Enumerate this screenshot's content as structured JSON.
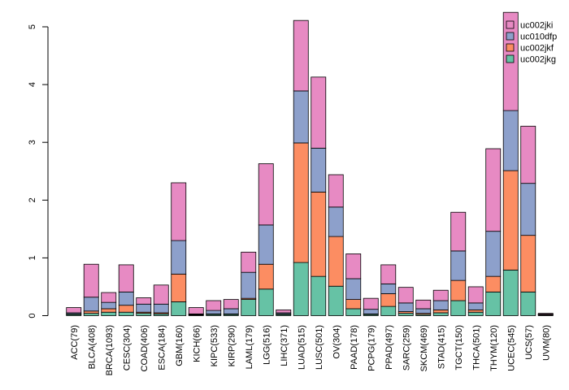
{
  "chart_data": {
    "type": "bar",
    "stacked": true,
    "ylim": [
      0,
      5
    ],
    "yticks": [
      0,
      1,
      2,
      3,
      4,
      5
    ],
    "categories": [
      "ACC(79)",
      "BLCA(408)",
      "BRCA(1093)",
      "CESC(304)",
      "COAD(406)",
      "ESCA(184)",
      "GBM(160)",
      "KICH(66)",
      "KIPC(533)",
      "KIRP(290)",
      "LAML(179)",
      "LGG(516)",
      "LIHC(371)",
      "LUAD(515)",
      "LUSC(501)",
      "OV(304)",
      "PAAD(178)",
      "PCPG(179)",
      "PPAD(497)",
      "SARC(259)",
      "SKCM(469)",
      "STAD(415)",
      "TGCT(150)",
      "THCA(501)",
      "THYM(120)",
      "UCEC(545)",
      "UCS(57)",
      "UVM(80)"
    ],
    "series": [
      {
        "name": "uc002jkg",
        "color": "#66c2a5",
        "values": [
          0.02,
          0.04,
          0.06,
          0.06,
          0.04,
          0.03,
          0.24,
          0.01,
          0.02,
          0.02,
          0.28,
          0.46,
          0.02,
          0.92,
          0.68,
          0.51,
          0.12,
          0.02,
          0.16,
          0.04,
          0.02,
          0.05,
          0.26,
          0.06,
          0.41,
          0.79,
          0.41,
          0.01
        ]
      },
      {
        "name": "uc002jkf",
        "color": "#fc8d62",
        "values": [
          0.01,
          0.04,
          0.06,
          0.12,
          0.02,
          0.02,
          0.48,
          0.01,
          0.01,
          0.01,
          0.02,
          0.43,
          0.01,
          2.07,
          1.46,
          0.86,
          0.16,
          0.01,
          0.22,
          0.03,
          0.02,
          0.05,
          0.35,
          0.04,
          0.27,
          1.72,
          0.98,
          0.005
        ]
      },
      {
        "name": "uc010dfp",
        "color": "#8da0cb",
        "values": [
          0.02,
          0.24,
          0.11,
          0.23,
          0.14,
          0.15,
          0.58,
          0.01,
          0.06,
          0.09,
          0.45,
          0.68,
          0.02,
          0.9,
          0.76,
          0.51,
          0.36,
          0.08,
          0.17,
          0.15,
          0.08,
          0.16,
          0.51,
          0.12,
          0.78,
          1.04,
          0.9,
          0.01
        ]
      },
      {
        "name": "uc002jki",
        "color": "#e78ac3",
        "values": [
          0.09,
          0.57,
          0.17,
          0.47,
          0.11,
          0.33,
          1.0,
          0.11,
          0.17,
          0.16,
          0.35,
          1.06,
          0.05,
          1.22,
          1.23,
          0.56,
          0.43,
          0.19,
          0.33,
          0.27,
          0.15,
          0.18,
          0.67,
          0.28,
          1.43,
          1.7,
          0.99,
          0.015
        ]
      }
    ]
  }
}
